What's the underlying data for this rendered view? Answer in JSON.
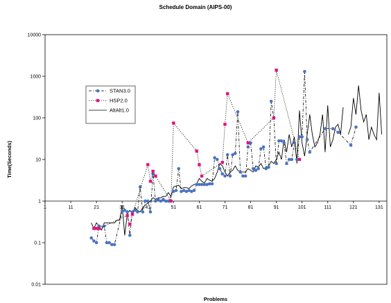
{
  "chart_data": {
    "type": "line",
    "title": "Schedule Domain (AIPS-00)",
    "xlabel": "Problems",
    "ylabel": "Time(Seconds)",
    "y_scale": "log",
    "ylim": [
      0.01,
      10000
    ],
    "xlim": [
      1,
      134
    ],
    "x_ticks": [
      1,
      11,
      21,
      31,
      41,
      51,
      61,
      71,
      81,
      91,
      101,
      111,
      121,
      131
    ],
    "x_tick_labels": [
      "1",
      "11",
      "21",
      "31",
      "41",
      "51",
      "61",
      "71",
      "81",
      "91",
      "101",
      "111",
      "121",
      "131"
    ],
    "y_ticks": [
      0.01,
      0.1,
      1,
      10,
      100,
      1000,
      10000
    ],
    "y_tick_labels": [
      "0.01",
      "0.1",
      "1",
      "10",
      "100",
      "1000",
      "10000"
    ],
    "grid": false,
    "legend_position": "upper-left inside plot",
    "series": [
      {
        "name": "STAN3.0",
        "color": "#4a74c4",
        "line_style": "dash-dot",
        "marker": "circle",
        "points": [
          [
            19,
            0.13
          ],
          [
            20,
            0.11
          ],
          [
            21,
            0.1
          ],
          [
            22,
            0.25
          ],
          [
            24,
            0.25
          ],
          [
            25,
            0.1
          ],
          [
            26,
            0.1
          ],
          [
            27,
            0.09
          ],
          [
            28,
            0.09
          ],
          [
            31,
            0.55
          ],
          [
            32,
            0.6
          ],
          [
            33,
            0.55
          ],
          [
            34,
            0.15
          ],
          [
            35,
            0.55
          ],
          [
            36,
            0.6
          ],
          [
            37,
            0.55
          ],
          [
            38,
            2.2
          ],
          [
            39,
            0.55
          ],
          [
            40,
            1.0
          ],
          [
            41,
            1.0
          ],
          [
            42,
            0.55
          ],
          [
            43,
            4.5
          ],
          [
            44,
            1.0
          ],
          [
            45,
            1.1
          ],
          [
            46,
            1.0
          ],
          [
            47,
            1.1
          ],
          [
            48,
            1.0
          ],
          [
            49,
            1.0
          ],
          [
            51,
            1.7
          ],
          [
            52,
            1.8
          ],
          [
            53,
            6.0
          ],
          [
            54,
            1.7
          ],
          [
            55,
            1.8
          ],
          [
            56,
            1.7
          ],
          [
            57,
            1.8
          ],
          [
            58,
            1.7
          ],
          [
            59,
            1.8
          ],
          [
            60,
            2.5
          ],
          [
            61,
            2.5
          ],
          [
            62,
            2.5
          ],
          [
            63,
            2.5
          ],
          [
            64,
            2.5
          ],
          [
            65,
            2.6
          ],
          [
            66,
            2.6
          ],
          [
            67,
            11
          ],
          [
            68,
            10
          ],
          [
            69,
            6
          ],
          [
            70,
            4.5
          ],
          [
            71,
            4.0
          ],
          [
            72,
            13
          ],
          [
            73,
            4.0
          ],
          [
            74,
            13
          ],
          [
            75,
            14
          ],
          [
            76,
            140
          ],
          [
            77,
            5
          ],
          [
            78,
            4
          ],
          [
            79,
            4
          ],
          [
            80,
            20
          ],
          [
            81,
            25
          ],
          [
            82,
            6
          ],
          [
            83,
            5.5
          ],
          [
            84,
            6
          ],
          [
            85,
            18
          ],
          [
            86,
            20
          ],
          [
            87,
            6
          ],
          [
            88,
            6.5
          ],
          [
            89,
            250
          ],
          [
            90,
            100
          ],
          [
            91,
            8
          ],
          [
            92,
            28
          ],
          [
            93,
            28
          ],
          [
            94,
            25
          ],
          [
            95,
            8
          ],
          [
            96,
            10
          ],
          [
            97,
            10
          ],
          [
            98,
            25
          ],
          [
            99,
            10
          ],
          [
            100,
            35
          ],
          [
            101,
            35
          ],
          [
            102,
            1300
          ],
          [
            103,
            30
          ],
          [
            104,
            15
          ],
          [
            110,
            55
          ],
          [
            113,
            55
          ],
          [
            115,
            45
          ],
          [
            120,
            22
          ],
          [
            122,
            60
          ]
        ]
      },
      {
        "name": "HSP2.0",
        "color": "#e0137f",
        "line_style": "dotted",
        "marker": "square",
        "points": [
          [
            20,
            0.22
          ],
          [
            21,
            0.22
          ],
          [
            22,
            0.22
          ],
          [
            33,
            0.45
          ],
          [
            34,
            0.28
          ],
          [
            35,
            0.48
          ],
          [
            41,
            7.5
          ],
          [
            42,
            3.0
          ],
          [
            43,
            5.2
          ],
          [
            44,
            4.0
          ],
          [
            50,
            1.0
          ],
          [
            51,
            75
          ],
          [
            60,
            16
          ],
          [
            61,
            7.5
          ],
          [
            62,
            4.0
          ],
          [
            70,
            8.5
          ],
          [
            71,
            70
          ],
          [
            72,
            380
          ],
          [
            80,
            25
          ],
          [
            90,
            100
          ],
          [
            91,
            1400
          ],
          [
            100,
            10
          ]
        ]
      },
      {
        "name": "AltAlt1.0",
        "color": "#000000",
        "line_style": "solid",
        "marker": "none",
        "points": [
          [
            19,
            0.3
          ],
          [
            20,
            0.22
          ],
          [
            21,
            0.3
          ],
          [
            22,
            0.25
          ],
          [
            23,
            0.2
          ],
          [
            24,
            0.3
          ],
          [
            25,
            0.3
          ],
          [
            26,
            0.3
          ],
          [
            27,
            0.3
          ],
          [
            28,
            0.3
          ],
          [
            29,
            0.35
          ],
          [
            30,
            0.35
          ],
          [
            31,
            0.8
          ],
          [
            32,
            0.15
          ],
          [
            33,
            0.5
          ],
          [
            34,
            0.6
          ],
          [
            35,
            0.5
          ],
          [
            36,
            0.7
          ],
          [
            37,
            0.6
          ],
          [
            38,
            0.55
          ],
          [
            39,
            0.7
          ],
          [
            40,
            0.8
          ],
          [
            41,
            0.9
          ],
          [
            42,
            1.0
          ],
          [
            43,
            1.2
          ],
          [
            44,
            1.1
          ],
          [
            45,
            1.2
          ],
          [
            46,
            1.2
          ],
          [
            47,
            1.3
          ],
          [
            48,
            1.3
          ],
          [
            49,
            1.6
          ],
          [
            50,
            1.3
          ],
          [
            51,
            2.2
          ],
          [
            52,
            2.3
          ],
          [
            53,
            2.4
          ],
          [
            54,
            2.0
          ],
          [
            55,
            2.1
          ],
          [
            56,
            2.1
          ],
          [
            57,
            2.0
          ],
          [
            58,
            2.3
          ],
          [
            59,
            2.5
          ],
          [
            60,
            2.6
          ],
          [
            61,
            3.5
          ],
          [
            62,
            3.0
          ],
          [
            63,
            2.7
          ],
          [
            64,
            3.5
          ],
          [
            65,
            3.2
          ],
          [
            66,
            3.0
          ],
          [
            67,
            3.5
          ],
          [
            68,
            5.0
          ],
          [
            69,
            8.0
          ],
          [
            70,
            7.0
          ],
          [
            71,
            5.0
          ],
          [
            72,
            4.0
          ],
          [
            73,
            5.0
          ],
          [
            74,
            5.5
          ],
          [
            75,
            7.0
          ],
          [
            76,
            5.5
          ],
          [
            77,
            5.0
          ],
          [
            78,
            5.0
          ],
          [
            79,
            5.0
          ],
          [
            80,
            6.0
          ],
          [
            81,
            5.5
          ],
          [
            82,
            5.0
          ],
          [
            83,
            7.0
          ],
          [
            84,
            6.5
          ],
          [
            85,
            8.0
          ],
          [
            86,
            6.0
          ],
          [
            87,
            6.5
          ],
          [
            88,
            7.0
          ],
          [
            89,
            9.0
          ],
          [
            90,
            8.0
          ],
          [
            91,
            10
          ],
          [
            92,
            15
          ],
          [
            93,
            10
          ],
          [
            94,
            30
          ],
          [
            95,
            15
          ],
          [
            96,
            40
          ],
          [
            97,
            20
          ],
          [
            98,
            35
          ],
          [
            99,
            8
          ],
          [
            100,
            150
          ],
          [
            101,
            25
          ],
          [
            102,
            12
          ],
          [
            103,
            40
          ],
          [
            104,
            120
          ],
          [
            105,
            40
          ],
          [
            106,
            20
          ],
          [
            107,
            25
          ],
          [
            108,
            40
          ],
          [
            109,
            120
          ],
          [
            110,
            15
          ],
          [
            111,
            200
          ],
          [
            112,
            20
          ],
          [
            113,
            30
          ],
          [
            114,
            60
          ],
          [
            115,
            70
          ],
          [
            116,
            40
          ],
          [
            117,
            180
          ],
          null,
          [
            119,
            40
          ],
          [
            120,
            60
          ],
          [
            121,
            300
          ],
          [
            122,
            120
          ],
          [
            123,
            600
          ],
          [
            124,
            150
          ],
          [
            125,
            80
          ],
          [
            126,
            120
          ],
          [
            127,
            30
          ],
          [
            128,
            60
          ],
          [
            129,
            40
          ],
          [
            130,
            30
          ],
          [
            131,
            400
          ],
          [
            132,
            40
          ]
        ]
      }
    ]
  }
}
